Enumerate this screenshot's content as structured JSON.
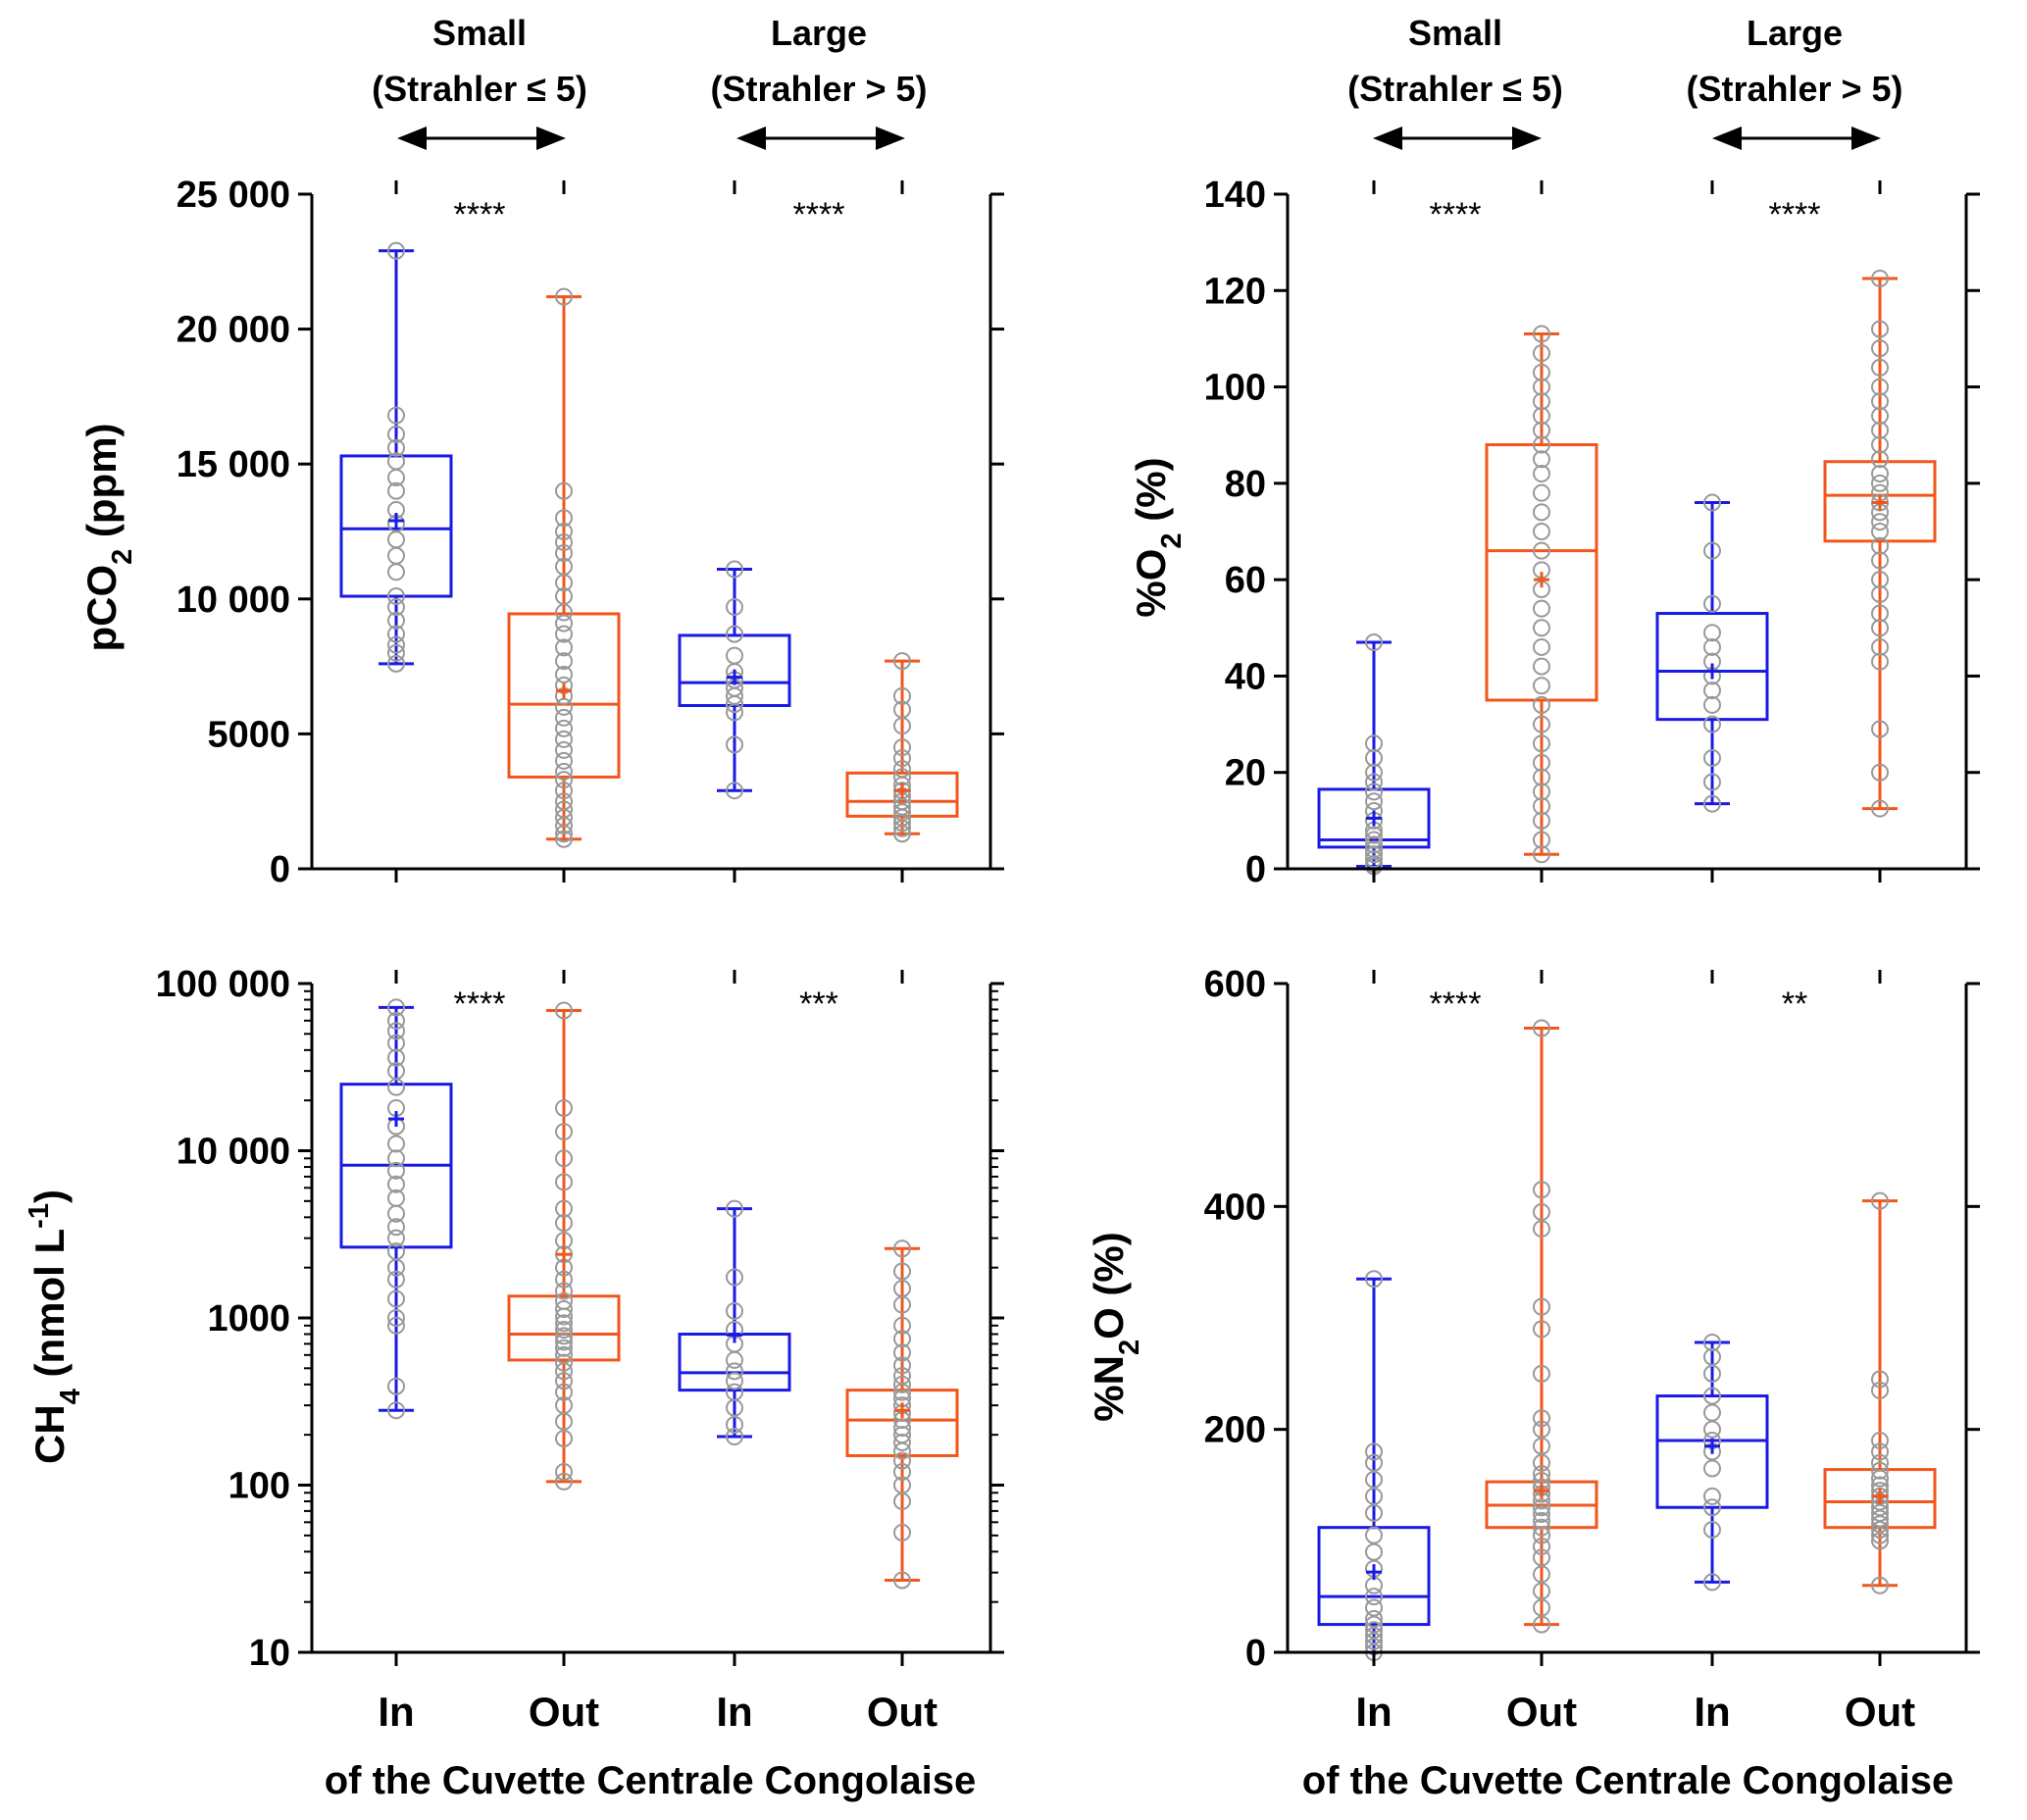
{
  "colors": {
    "in": "#1a1ae6",
    "out": "#f2561b",
    "point": "#999999",
    "axis": "#000000"
  },
  "shared": {
    "categories": [
      "In",
      "Out",
      "In",
      "Out"
    ],
    "groups": [
      {
        "title": "Small",
        "subtitle": "(Strahler ≤ 5)"
      },
      {
        "title": "Large",
        "subtitle": "(Strahler > 5)"
      }
    ],
    "footer": "of the Cuvette Centrale Congolaise"
  },
  "chart_data": [
    {
      "type": "box",
      "scale": "linear",
      "ylabel": "pCO2 (ppm)",
      "ylabel_main": "pCO",
      "ylabel_sub": "2",
      "ylabel_tail": " (ppm)",
      "ylim": [
        0,
        25000
      ],
      "ticks": [
        0,
        5000,
        10000,
        15000,
        20000,
        25000
      ],
      "tick_labels": [
        "0",
        "5000",
        "10 000",
        "15 000",
        "20 000",
        "25 000"
      ],
      "significance": [
        "****",
        "****"
      ],
      "boxes": [
        {
          "category": "In",
          "group": "Small",
          "min": 7600,
          "q1": 10100,
          "median": 12600,
          "q3": 15300,
          "max": 22900,
          "mean": 12900,
          "points": [
            7600,
            8000,
            8300,
            8700,
            9200,
            9700,
            10100,
            11000,
            11600,
            12200,
            12800,
            13300,
            14000,
            14500,
            15100,
            15600,
            16100,
            16800,
            22900
          ]
        },
        {
          "category": "Out",
          "group": "Small",
          "min": 1100,
          "q1": 3400,
          "median": 6100,
          "q3": 9450,
          "max": 21200,
          "mean": 6600,
          "points": [
            1100,
            1300,
            1600,
            1900,
            2200,
            2500,
            2900,
            3300,
            3600,
            4000,
            4400,
            4800,
            5200,
            5600,
            6000,
            6400,
            6800,
            7200,
            7700,
            8200,
            8700,
            9100,
            9500,
            10100,
            10600,
            11200,
            11700,
            12100,
            12500,
            13000,
            14000,
            21200
          ]
        },
        {
          "category": "In",
          "group": "Large",
          "min": 2900,
          "q1": 6050,
          "median": 6900,
          "q3": 8650,
          "max": 11100,
          "mean": 7100,
          "points": [
            2900,
            4600,
            5800,
            6100,
            6400,
            6700,
            7000,
            7300,
            7900,
            8700,
            9700,
            11100
          ]
        },
        {
          "category": "Out",
          "group": "Large",
          "min": 1300,
          "q1": 1950,
          "median": 2500,
          "q3": 3550,
          "max": 7700,
          "mean": 2900,
          "points": [
            1300,
            1500,
            1700,
            1900,
            2100,
            2300,
            2500,
            2700,
            2900,
            3100,
            3400,
            3700,
            4100,
            4500,
            5300,
            5900,
            6400,
            7700
          ]
        }
      ]
    },
    {
      "type": "box",
      "scale": "linear",
      "ylabel": "%O2 (%)",
      "ylabel_main": "%O",
      "ylabel_sub": "2",
      "ylabel_tail": " (%)",
      "ylim": [
        0,
        140
      ],
      "ticks": [
        0,
        20,
        40,
        60,
        80,
        100,
        120,
        140
      ],
      "tick_labels": [
        "0",
        "20",
        "40",
        "60",
        "80",
        "100",
        "120",
        "140"
      ],
      "significance": [
        "****",
        "****"
      ],
      "boxes": [
        {
          "category": "In",
          "group": "Small",
          "min": 0.5,
          "q1": 4.5,
          "median": 6,
          "q3": 16.5,
          "max": 47,
          "mean": 10.5,
          "points": [
            0.5,
            1,
            2,
            3,
            4,
            5,
            6,
            7,
            8,
            10,
            12,
            14,
            16,
            18,
            20,
            23,
            26,
            47
          ]
        },
        {
          "category": "Out",
          "group": "Small",
          "min": 3,
          "q1": 35,
          "median": 66,
          "q3": 88,
          "max": 111,
          "mean": 60,
          "points": [
            3,
            6,
            10,
            13,
            16,
            19,
            22,
            26,
            30,
            34,
            38,
            42,
            46,
            50,
            54,
            58,
            62,
            66,
            70,
            74,
            78,
            82,
            85,
            88,
            91,
            94,
            97,
            100,
            103,
            107,
            111
          ]
        },
        {
          "category": "In",
          "group": "Large",
          "min": 13.5,
          "q1": 31,
          "median": 41,
          "q3": 53,
          "max": 76,
          "mean": 41,
          "points": [
            13.5,
            18,
            23,
            30,
            34,
            37,
            40,
            43,
            46,
            49,
            55,
            66,
            76
          ]
        },
        {
          "category": "Out",
          "group": "Large",
          "min": 12.5,
          "q1": 68,
          "median": 77.5,
          "q3": 84.5,
          "max": 122.5,
          "mean": 76,
          "points": [
            12.5,
            20,
            29,
            43,
            46,
            50,
            53,
            57,
            60,
            64,
            67,
            70,
            72,
            74,
            76,
            78,
            80,
            82,
            85,
            88,
            91,
            94,
            97,
            100,
            104,
            108,
            112,
            122.5
          ]
        }
      ]
    },
    {
      "type": "box",
      "scale": "log",
      "ylabel": "CH4 (nmol L-1)",
      "ylabel_main": "CH",
      "ylabel_sub": "4",
      "ylabel_tail": " (nmol L",
      "ylabel_sup": "-1",
      "ylabel_end": ")",
      "ylim": [
        10,
        100000
      ],
      "ticks": [
        10,
        100,
        1000,
        10000,
        100000
      ],
      "tick_labels": [
        "10",
        "100",
        "1000",
        "10 000",
        "100 000"
      ],
      "significance": [
        "****",
        "***"
      ],
      "boxes": [
        {
          "category": "In",
          "group": "Small",
          "min": 280,
          "q1": 2650,
          "median": 8200,
          "q3": 25000,
          "max": 72000,
          "mean": 15500,
          "points": [
            280,
            390,
            900,
            1000,
            1300,
            1700,
            2000,
            2500,
            3000,
            3500,
            4200,
            5200,
            6300,
            7600,
            9000,
            11000,
            14000,
            18000,
            24000,
            30000,
            36000,
            44000,
            52000,
            60000,
            72000
          ]
        },
        {
          "category": "Out",
          "group": "Small",
          "min": 105,
          "q1": 560,
          "median": 800,
          "q3": 1350,
          "max": 69000,
          "mean": 2400,
          "points": [
            105,
            120,
            190,
            240,
            300,
            360,
            420,
            480,
            540,
            600,
            660,
            720,
            780,
            850,
            930,
            1020,
            1130,
            1260,
            1450,
            1700,
            2000,
            2400,
            2900,
            3700,
            4500,
            6500,
            9000,
            13000,
            18000,
            69000
          ]
        },
        {
          "category": "In",
          "group": "Large",
          "min": 195,
          "q1": 370,
          "median": 470,
          "q3": 800,
          "max": 4500,
          "mean": 790,
          "points": [
            195,
            230,
            290,
            360,
            420,
            480,
            560,
            700,
            850,
            1100,
            1750,
            4500
          ]
        },
        {
          "category": "Out",
          "group": "Large",
          "min": 27,
          "q1": 150,
          "median": 245,
          "q3": 370,
          "max": 2600,
          "mean": 280,
          "points": [
            27,
            52,
            80,
            100,
            120,
            140,
            160,
            180,
            200,
            220,
            245,
            270,
            300,
            330,
            360,
            400,
            450,
            520,
            620,
            750,
            900,
            1200,
            1500,
            1900,
            2600
          ]
        }
      ]
    },
    {
      "type": "box",
      "scale": "linear",
      "ylabel": "%N2O (%)",
      "ylabel_main": "%N",
      "ylabel_sub": "2",
      "ylabel_tail": "O (%)",
      "ylim": [
        0,
        600
      ],
      "ticks": [
        0,
        200,
        400,
        600
      ],
      "tick_labels": [
        "0",
        "200",
        "400",
        "600"
      ],
      "significance": [
        "****",
        "**"
      ],
      "boxes": [
        {
          "category": "In",
          "group": "Small",
          "min": 0,
          "q1": 25,
          "median": 50,
          "q3": 112,
          "max": 335,
          "mean": 72,
          "points": [
            0,
            5,
            10,
            15,
            20,
            25,
            30,
            40,
            50,
            60,
            75,
            90,
            105,
            125,
            140,
            155,
            170,
            180,
            335
          ]
        },
        {
          "category": "Out",
          "group": "Small",
          "min": 25,
          "q1": 112,
          "median": 132,
          "q3": 153,
          "max": 560,
          "mean": 145,
          "points": [
            25,
            40,
            55,
            70,
            85,
            95,
            105,
            112,
            118,
            124,
            130,
            136,
            142,
            148,
            154,
            160,
            170,
            185,
            200,
            210,
            250,
            290,
            310,
            380,
            395,
            415,
            560
          ]
        },
        {
          "category": "In",
          "group": "Large",
          "min": 63,
          "q1": 130,
          "median": 190,
          "q3": 230,
          "max": 278,
          "mean": 185,
          "points": [
            63,
            110,
            130,
            140,
            165,
            180,
            190,
            200,
            215,
            230,
            250,
            265,
            278
          ]
        },
        {
          "category": "Out",
          "group": "Large",
          "min": 60,
          "q1": 112,
          "median": 135,
          "q3": 164,
          "max": 405,
          "mean": 140,
          "points": [
            60,
            100,
            105,
            110,
            115,
            120,
            125,
            130,
            135,
            140,
            145,
            150,
            156,
            163,
            170,
            180,
            190,
            235,
            245,
            405
          ]
        }
      ]
    }
  ]
}
